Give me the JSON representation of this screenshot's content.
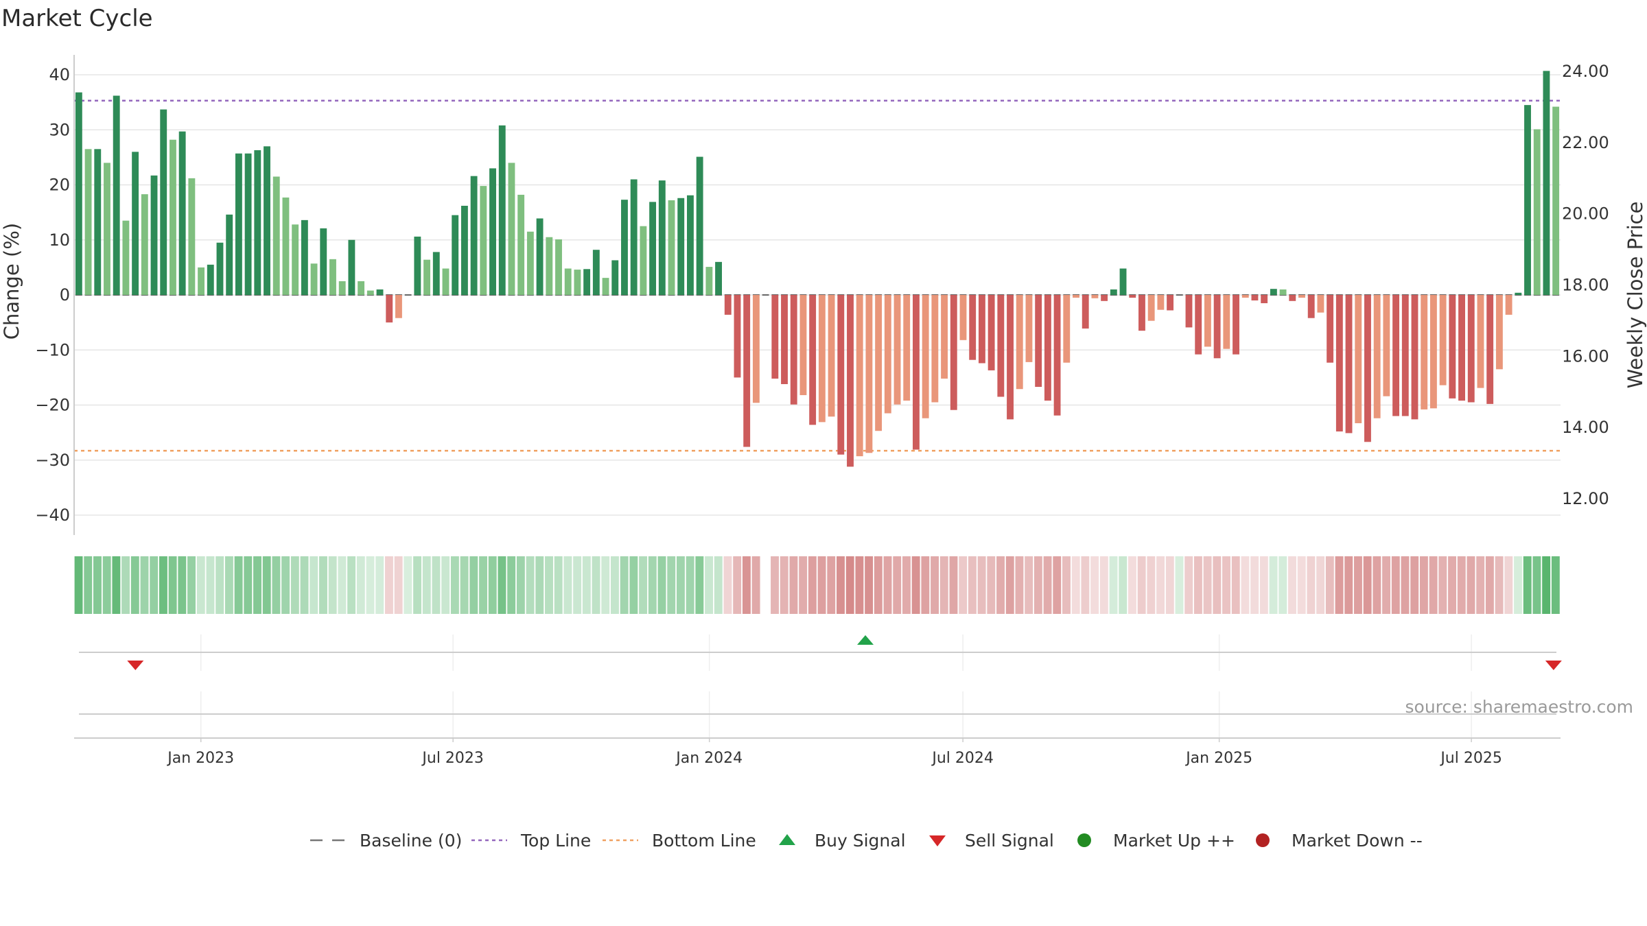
{
  "chart_data": {
    "type": "bar",
    "title": "Market Cycle",
    "ylabel": "Change (%)",
    "y2label": "Weekly Close Price",
    "ylim": [
      -44,
      44
    ],
    "yticks": [
      40,
      30,
      20,
      10,
      0,
      -10,
      -20,
      -30,
      -40
    ],
    "ytick_labels": [
      "40",
      "30",
      "20",
      "10",
      "0",
      "−10",
      "−20",
      "−30",
      "−40"
    ],
    "y2lim": [
      11.15,
      24.2
    ],
    "y2ticks": [
      24,
      22,
      20,
      18,
      16,
      14,
      12
    ],
    "y2tick_labels": [
      "24.00",
      "22.00",
      "20.00",
      "18.00",
      "16.00",
      "14.00",
      "12.00"
    ],
    "x_range": [
      "2022-10-02",
      "2025-09-03"
    ],
    "x_ticks": [
      {
        "label": "Jan 2023",
        "date": "2023-01-01"
      },
      {
        "label": "Jul 2023",
        "date": "2023-07-01"
      },
      {
        "label": "Jan 2024",
        "date": "2024-01-01"
      },
      {
        "label": "Jul 2024",
        "date": "2024-07-01"
      },
      {
        "label": "Jan 2025",
        "date": "2025-01-01"
      },
      {
        "label": "Jul 2025",
        "date": "2025-07-01"
      }
    ],
    "first_week": "2022-10-06",
    "top_line": 35.3,
    "bottom_line": -28.3,
    "grid": true,
    "legend_position": "bottom",
    "values": [
      36.8,
      26.5,
      26.5,
      24,
      36.2,
      13.5,
      26,
      18.3,
      21.7,
      33.7,
      28.2,
      29.7,
      21.2,
      5,
      5.5,
      9.5,
      14.6,
      25.7,
      25.7,
      26.3,
      27,
      21.5,
      17.7,
      12.8,
      13.6,
      5.7,
      12.1,
      6.5,
      2.5,
      10,
      2.5,
      0.8,
      1,
      -5,
      -4.2,
      0,
      10.6,
      6.4,
      7.8,
      4.8,
      14.5,
      16.2,
      21.6,
      19.8,
      23,
      30.8,
      24,
      18.2,
      11.5,
      13.9,
      10.5,
      10.1,
      4.8,
      4.6,
      4.7,
      8.2,
      3.1,
      6.3,
      17.3,
      21,
      12.5,
      16.9,
      20.8,
      17.2,
      17.6,
      18.1,
      25.1,
      5.1,
      6,
      -3.6,
      -15,
      -27.6,
      -19.6,
      0,
      -15.2,
      -16.2,
      -19.9,
      -18.2,
      -23.6,
      -23.1,
      -22.1,
      -29,
      -31.2,
      -29.3,
      -28.7,
      -24.7,
      -21.5,
      -19.9,
      -19.2,
      -28.1,
      -22.4,
      -19.5,
      -15.2,
      -20.9,
      -8.2,
      -11.8,
      -12.4,
      -13.7,
      -18.5,
      -22.6,
      -17.1,
      -12.2,
      -16.7,
      -19.2,
      -21.9,
      -12.3,
      -0.5,
      -6.1,
      -0.6,
      -1.1,
      1,
      4.8,
      -0.5,
      -6.5,
      -4.7,
      -2.7,
      -2.8,
      0,
      -5.9,
      -10.8,
      -9.4,
      -11.5,
      -9.8,
      -10.8,
      -0.5,
      -1,
      -1.5,
      1.1,
      1,
      -1.1,
      -0.5,
      -4.2,
      -3.2,
      -12.3,
      -24.8,
      -25.1,
      -23.3,
      -26.7,
      -22.4,
      -18.4,
      -22,
      -22,
      -22.6,
      -20.8,
      -20.6,
      -16.4,
      -18.8,
      -19.2,
      -19.5,
      -16.9,
      -19.8,
      -13.5,
      -3.6,
      0.4,
      34.5,
      30.1,
      40.7,
      34.2
    ],
    "heat_hidden_indexes": [
      73
    ],
    "buy_signals": [
      {
        "date": "2024-04-22"
      }
    ],
    "sell_signals": [
      {
        "date": "2022-11-15"
      },
      {
        "date": "2025-08-29"
      }
    ],
    "legend": [
      {
        "label": "Baseline (0)",
        "kind": "dash",
        "color": "#777777"
      },
      {
        "label": "Top Line",
        "kind": "dot",
        "color": "#9467bd"
      },
      {
        "label": "Bottom Line",
        "kind": "dot",
        "color": "#f0a060"
      },
      {
        "label": "Buy Signal",
        "kind": "up",
        "color": "#22a34a"
      },
      {
        "label": "Sell Signal",
        "kind": "down",
        "color": "#d62728"
      },
      {
        "label": "Market Up ++",
        "kind": "circle",
        "color": "#228b22"
      },
      {
        "label": "Market Down --",
        "kind": "circle",
        "color": "#b22222"
      }
    ],
    "source": "source: sharemaestro.com"
  },
  "colors": {
    "strong_up": "#2e8b57",
    "weak_up": "#7fbf7f",
    "strong_down": "#cd5c5c",
    "weak_down": "#e9967a",
    "grid": "#e6e6e6",
    "axis": "#cccccc"
  }
}
